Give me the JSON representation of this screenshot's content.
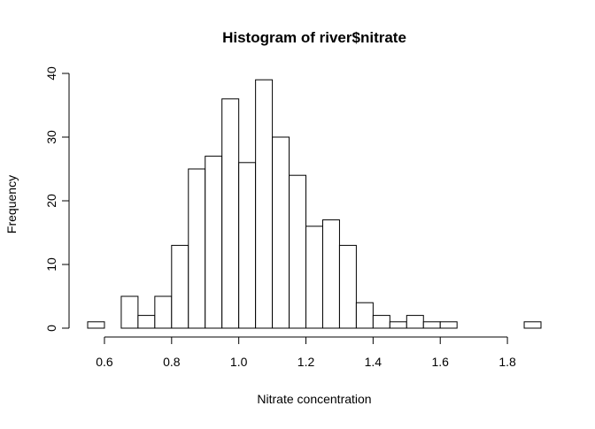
{
  "chart_data": {
    "type": "histogram",
    "title": "Histogram of river$nitrate",
    "xlabel": "Nitrate concentration",
    "ylabel": "Frequency",
    "bin_width": 0.05,
    "bins": [
      {
        "start": 0.55,
        "end": 0.6,
        "count": 1
      },
      {
        "start": 0.6,
        "end": 0.65,
        "count": 0
      },
      {
        "start": 0.65,
        "end": 0.7,
        "count": 5
      },
      {
        "start": 0.7,
        "end": 0.75,
        "count": 2
      },
      {
        "start": 0.75,
        "end": 0.8,
        "count": 5
      },
      {
        "start": 0.8,
        "end": 0.85,
        "count": 13
      },
      {
        "start": 0.85,
        "end": 0.9,
        "count": 25
      },
      {
        "start": 0.9,
        "end": 0.95,
        "count": 27
      },
      {
        "start": 0.95,
        "end": 1.0,
        "count": 36
      },
      {
        "start": 1.0,
        "end": 1.05,
        "count": 26
      },
      {
        "start": 1.05,
        "end": 1.1,
        "count": 39
      },
      {
        "start": 1.1,
        "end": 1.15,
        "count": 30
      },
      {
        "start": 1.15,
        "end": 1.2,
        "count": 24
      },
      {
        "start": 1.2,
        "end": 1.25,
        "count": 16
      },
      {
        "start": 1.25,
        "end": 1.3,
        "count": 17
      },
      {
        "start": 1.3,
        "end": 1.35,
        "count": 13
      },
      {
        "start": 1.35,
        "end": 1.4,
        "count": 4
      },
      {
        "start": 1.4,
        "end": 1.45,
        "count": 2
      },
      {
        "start": 1.45,
        "end": 1.5,
        "count": 1
      },
      {
        "start": 1.5,
        "end": 1.55,
        "count": 2
      },
      {
        "start": 1.55,
        "end": 1.6,
        "count": 1
      },
      {
        "start": 1.6,
        "end": 1.65,
        "count": 1
      },
      {
        "start": 1.65,
        "end": 1.7,
        "count": 0
      },
      {
        "start": 1.7,
        "end": 1.75,
        "count": 0
      },
      {
        "start": 1.75,
        "end": 1.8,
        "count": 0
      },
      {
        "start": 1.8,
        "end": 1.85,
        "count": 0
      },
      {
        "start": 1.85,
        "end": 1.9,
        "count": 1
      }
    ],
    "x_ticks": [
      "0.6",
      "0.8",
      "1.0",
      "1.2",
      "1.4",
      "1.6",
      "1.8"
    ],
    "y_ticks": [
      "0",
      "10",
      "20",
      "30",
      "40"
    ],
    "xlim": [
      0.55,
      1.9
    ],
    "ylim": [
      0,
      40
    ],
    "grid": false,
    "legend": false,
    "bar_fill": "#ffffff",
    "bar_stroke": "#000000"
  }
}
